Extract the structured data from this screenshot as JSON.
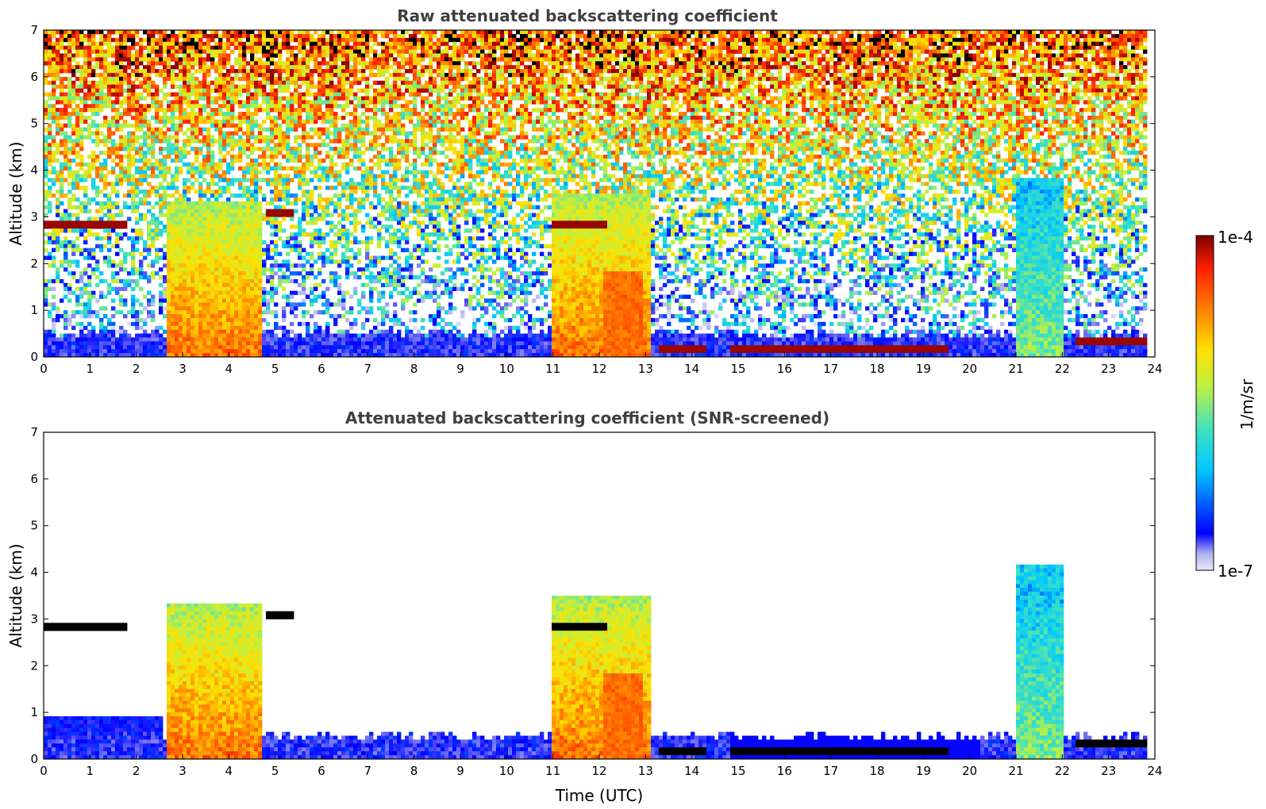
{
  "chart_data": [
    {
      "type": "heatmap",
      "title": "Raw attenuated backscattering coefficient",
      "xlabel": "",
      "ylabel": "Altitude (km)",
      "xlim": [
        0,
        24
      ],
      "ylim": [
        0,
        7
      ],
      "xticks": [
        0,
        1,
        2,
        3,
        4,
        5,
        6,
        7,
        8,
        9,
        10,
        11,
        12,
        13,
        14,
        15,
        16,
        17,
        18,
        19,
        20,
        21,
        22,
        23,
        24
      ],
      "yticks": [
        0,
        1,
        2,
        3,
        4,
        5,
        6,
        7
      ],
      "screened": false,
      "features": {
        "boundary_layer_top_km": 0.5,
        "aerosol_column_blocks": [
          {
            "t_start": 2.7,
            "t_end": 4.7,
            "top_km": 3.3,
            "level": "high"
          },
          {
            "t_start": 11.0,
            "t_end": 13.1,
            "top_km": 3.5,
            "level": "high"
          },
          {
            "t_start": 21.0,
            "t_end": 22.0,
            "top_km": 3.8,
            "level": "medium"
          }
        ],
        "cloud_layers": [
          {
            "t_start": 0.0,
            "t_end": 1.8,
            "alt_km": 2.8
          },
          {
            "t_start": 4.8,
            "t_end": 5.4,
            "alt_km": 3.1
          },
          {
            "t_start": 11.0,
            "t_end": 12.2,
            "alt_km": 2.8
          },
          {
            "t_start": 13.3,
            "t_end": 14.3,
            "alt_km": 0.2
          },
          {
            "t_start": 14.8,
            "t_end": 19.5,
            "alt_km": 0.15
          },
          {
            "t_start": 22.3,
            "t_end": 23.8,
            "alt_km": 0.3
          }
        ]
      }
    },
    {
      "type": "heatmap",
      "title": "Attenuated backscattering coefficient (SNR-screened)",
      "xlabel": "Time (UTC)",
      "ylabel": "Altitude (km)",
      "xlim": [
        0,
        24
      ],
      "ylim": [
        0,
        7
      ],
      "xticks": [
        0,
        1,
        2,
        3,
        4,
        5,
        6,
        7,
        8,
        9,
        10,
        11,
        12,
        13,
        14,
        15,
        16,
        17,
        18,
        19,
        20,
        21,
        22,
        23,
        24
      ],
      "yticks": [
        0,
        1,
        2,
        3,
        4,
        5,
        6,
        7
      ],
      "screened": true
    }
  ],
  "colorbar": {
    "label": "1/m/sr",
    "min_label": "1e-7",
    "max_label": "1e-4",
    "scale": "log",
    "colormap": "jet",
    "stops": [
      "#e8e8f8",
      "#b0b0f0",
      "#0000ff",
      "#00c8ff",
      "#40e0c0",
      "#c0f040",
      "#ffe000",
      "#ff8000",
      "#ff2000",
      "#800000"
    ]
  }
}
